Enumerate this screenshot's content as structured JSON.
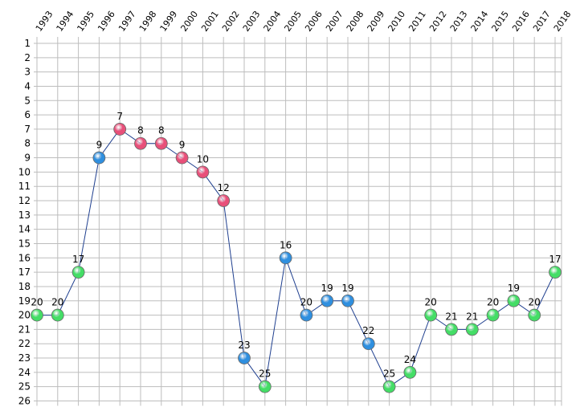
{
  "chart_data": {
    "type": "line",
    "title": "",
    "xlabel": "",
    "ylabel": "",
    "y_inverted": true,
    "ylim": [
      1,
      26
    ],
    "grid": true,
    "x": [
      "1993",
      "1994",
      "1995",
      "1996",
      "1997",
      "1998",
      "1999",
      "2000",
      "2001",
      "2002",
      "2003",
      "2004",
      "2005",
      "2006",
      "2007",
      "2008",
      "2009",
      "2010",
      "2011",
      "2012",
      "2013",
      "2014",
      "2015",
      "2016",
      "2017",
      "2018"
    ],
    "yticks": [
      "1",
      "2",
      "3",
      "4",
      "5",
      "6",
      "7",
      "8",
      "9",
      "10",
      "11",
      "12",
      "13",
      "14",
      "15",
      "16",
      "17",
      "18",
      "19",
      "20",
      "21",
      "22",
      "23",
      "24",
      "25",
      "26"
    ],
    "series": [
      {
        "values": [
          20,
          20,
          17,
          9,
          7,
          8,
          8,
          9,
          10,
          12,
          23,
          25,
          16,
          20,
          19,
          19,
          22,
          25,
          24,
          20,
          21,
          21,
          20,
          19,
          20,
          17
        ],
        "labels": [
          "20",
          "20",
          "17",
          "9",
          "7",
          "8",
          "8",
          "9",
          "10",
          "12",
          "23",
          "25",
          "16",
          "20",
          "19",
          "19",
          "22",
          "25",
          "24",
          "20",
          "21",
          "21",
          "20",
          "19",
          "20",
          "17"
        ],
        "point_colors": [
          "green",
          "green",
          "green",
          "blue",
          "pink",
          "pink",
          "pink",
          "pink",
          "pink",
          "pink",
          "blue",
          "green",
          "blue",
          "blue",
          "blue",
          "blue",
          "blue",
          "green",
          "green",
          "green",
          "green",
          "green",
          "green",
          "green",
          "green",
          "green"
        ],
        "line_color": "#1f3f8f"
      }
    ],
    "colors": {
      "green": "#44dd66",
      "blue": "#2f8fdf",
      "pink": "#e8507a"
    }
  }
}
